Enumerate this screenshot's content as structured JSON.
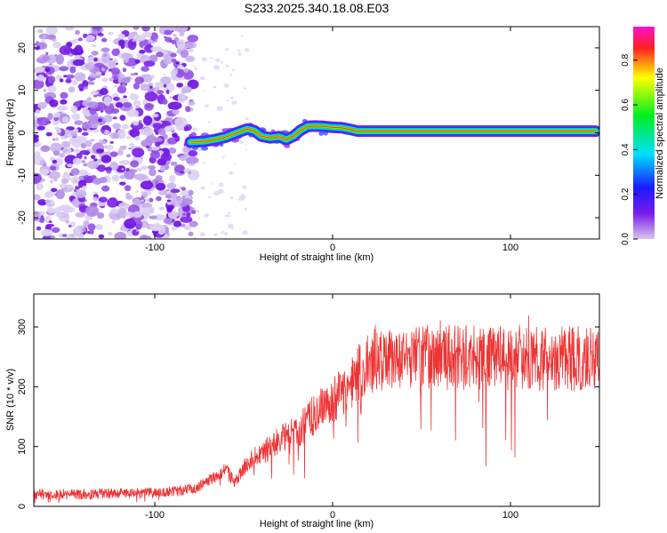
{
  "chart_data": [
    {
      "type": "heatmap",
      "title": "S233.2025.340.18.08.E03",
      "xlabel": "Height of straight line (km)",
      "ylabel": "Frequency (Hz)",
      "xlim": [
        -168,
        150
      ],
      "ylim": [
        -25,
        25
      ],
      "x_ticks": [
        "-100",
        "0",
        "100"
      ],
      "y_ticks": [
        "20",
        "10",
        "0",
        "-10",
        "-20"
      ],
      "noise_region_x": [
        -168,
        -78
      ],
      "ridge": {
        "x": [
          -80,
          -72,
          -66,
          -60,
          -54,
          -48,
          -44,
          -40,
          -35,
          -30,
          -26,
          -22,
          -18,
          -14,
          -10,
          -5,
          0,
          5,
          10,
          14,
          20,
          40,
          60,
          80,
          100,
          120,
          148
        ],
        "freq_hz": [
          -2.2,
          -2.0,
          -1.6,
          -1.0,
          0.0,
          0.9,
          0.5,
          -0.8,
          -1.2,
          -0.9,
          -1.6,
          -0.8,
          0.6,
          1.5,
          1.6,
          1.5,
          1.3,
          1.2,
          0.8,
          0.4,
          0.4,
          0.4,
          0.4,
          0.4,
          0.4,
          0.4,
          0.4
        ]
      },
      "colorbar": {
        "label": "Normalized spectral amplitude",
        "range": [
          0.0,
          0.95
        ],
        "ticks": [
          "0.0",
          "0.2",
          "0.4",
          "0.6",
          "0.8"
        ],
        "colors": [
          "#d8c4ee",
          "#7a1ce8",
          "#1a1aff",
          "#00e0ff",
          "#00ee20",
          "#ffff00",
          "#ff2020",
          "#ff10d0"
        ]
      }
    },
    {
      "type": "line",
      "title": "",
      "xlabel": "Height of straight line (km)",
      "ylabel": "SNR (10 * v/v)",
      "xlim": [
        -168,
        150
      ],
      "ylim": [
        0,
        355
      ],
      "x_ticks": [
        "-100",
        "0",
        "100"
      ],
      "y_ticks": [
        "300",
        "200",
        "100",
        "0"
      ],
      "series": [
        {
          "name": "SNR",
          "color": "#ee3333",
          "x": [
            -168,
            -150,
            -130,
            -110,
            -95,
            -85,
            -78,
            -72,
            -66,
            -60,
            -55,
            -50,
            -45,
            -40,
            -35,
            -30,
            -25,
            -20,
            -15,
            -10,
            -5,
            0,
            5,
            10,
            15,
            20,
            25,
            30,
            40,
            50,
            60,
            70,
            80,
            90,
            100,
            110,
            120,
            130,
            140,
            150
          ],
          "values": [
            20,
            20,
            21,
            22,
            23,
            26,
            30,
            38,
            50,
            60,
            40,
            65,
            80,
            88,
            100,
            110,
            120,
            125,
            140,
            155,
            165,
            175,
            190,
            205,
            225,
            240,
            245,
            245,
            248,
            250,
            248,
            250,
            248,
            250,
            248,
            250,
            245,
            248,
            245,
            245
          ]
        }
      ]
    }
  ]
}
